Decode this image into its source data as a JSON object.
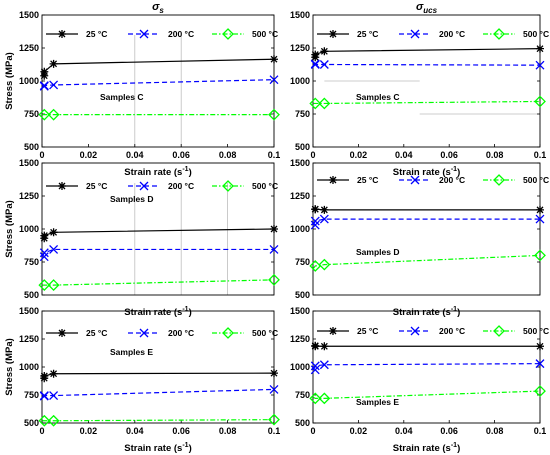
{
  "colors": {
    "25": "#000000",
    "200": "#0000ff",
    "500": "#00ff00"
  },
  "chart_data": [
    {
      "type": "line",
      "title": "σ",
      "title_sub": "s",
      "xlabel": "Strain rate (s",
      "xlabel_sup": "-1",
      "xlabel_end": ")",
      "ylabel": "Stress (MPa)",
      "xlim": [
        0,
        0.1
      ],
      "ylim": [
        500,
        1500
      ],
      "xticks": [
        "0",
        "0.02",
        "0.04",
        "0.06",
        "0.08",
        "0.1"
      ],
      "yticks": [
        "500",
        "750",
        "1000",
        "1250",
        "1500"
      ],
      "xtick_values": [
        0,
        0.02,
        0.04,
        0.06,
        0.08,
        0.1
      ],
      "ytick_values": [
        500,
        750,
        1000,
        1250,
        1500
      ],
      "annotation": "Samples C",
      "x": [
        0.0001,
        0.001,
        0.005,
        0.1
      ],
      "series": [
        {
          "name": "25 °C",
          "key": "25",
          "marker": "star",
          "values": [
            1040,
            1070,
            1130,
            1165
          ]
        },
        {
          "name": "200 °C",
          "key": "200",
          "marker": "x",
          "values": [
            960,
            965,
            970,
            1010
          ]
        },
        {
          "name": "500 °C",
          "key": "500",
          "marker": "diamond",
          "values": [
            745,
            745,
            745,
            745
          ]
        }
      ]
    },
    {
      "type": "line",
      "title": "σ",
      "title_sub": "ucs",
      "xlabel": "Strain rate (s",
      "xlabel_sup": "-1",
      "xlabel_end": ")",
      "ylabel": "",
      "xlim": [
        0,
        0.1
      ],
      "ylim": [
        500,
        1500
      ],
      "xticks": [
        "0",
        "0.02",
        "0.04",
        "0.06",
        "0.08",
        "0.1"
      ],
      "yticks": [
        "500",
        "750",
        "1000",
        "1250",
        "1500"
      ],
      "xtick_values": [
        0,
        0.02,
        0.04,
        0.06,
        0.08,
        0.1
      ],
      "ytick_values": [
        500,
        750,
        1000,
        1250,
        1500
      ],
      "annotation": "Samples C",
      "x": [
        0.0001,
        0.001,
        0.005,
        0.1
      ],
      "series": [
        {
          "name": "25 °C",
          "key": "25",
          "marker": "star",
          "values": [
            1180,
            1200,
            1225,
            1245
          ]
        },
        {
          "name": "200 °C",
          "key": "200",
          "marker": "x",
          "values": [
            1130,
            1125,
            1125,
            1120
          ]
        },
        {
          "name": "500 °C",
          "key": "500",
          "marker": "diamond",
          "values": [
            830,
            830,
            830,
            845
          ]
        }
      ]
    },
    {
      "type": "line",
      "title": "",
      "xlabel": "Strain rate (s",
      "xlabel_sup": "-1",
      "xlabel_end": ")",
      "ylabel": "Stress (MPa)",
      "xlim": [
        0,
        0.1
      ],
      "ylim": [
        500,
        1500
      ],
      "xticks": [],
      "yticks": [
        "500",
        "750",
        "1000",
        "1250",
        "1500"
      ],
      "xtick_values": [],
      "ytick_values": [
        500,
        750,
        1000,
        1250,
        1500
      ],
      "annotation": "Samples D",
      "x": [
        0.0001,
        0.001,
        0.005,
        0.1
      ],
      "series": [
        {
          "name": "25 °C",
          "key": "25",
          "marker": "star",
          "values": [
            930,
            950,
            975,
            1000
          ]
        },
        {
          "name": "200 °C",
          "key": "200",
          "marker": "x",
          "values": [
            790,
            820,
            845,
            845
          ]
        },
        {
          "name": "500 °C",
          "key": "500",
          "marker": "diamond",
          "values": [
            575,
            575,
            575,
            615
          ]
        }
      ]
    },
    {
      "type": "line",
      "title": "",
      "xlabel": "Strain rate (s",
      "xlabel_sup": "-1",
      "xlabel_end": ")",
      "ylabel": "",
      "xlim": [
        0,
        0.1
      ],
      "ylim": [
        500,
        1500
      ],
      "xticks": [],
      "yticks": [
        "500",
        "750",
        "1000",
        "1250",
        "1500"
      ],
      "xtick_values": [],
      "ytick_values": [
        500,
        750,
        1000,
        1250,
        1500
      ],
      "annotation": "Samples D",
      "x": [
        0.0001,
        0.001,
        0.005,
        0.1
      ],
      "series": [
        {
          "name": "25 °C",
          "key": "25",
          "marker": "star",
          "values": [
            1150,
            1150,
            1145,
            1145
          ]
        },
        {
          "name": "200 °C",
          "key": "200",
          "marker": "x",
          "values": [
            1030,
            1060,
            1075,
            1075
          ]
        },
        {
          "name": "500 °C",
          "key": "500",
          "marker": "diamond",
          "values": [
            700,
            720,
            730,
            800
          ]
        }
      ]
    },
    {
      "type": "line",
      "title": "",
      "xlabel": "Strain rate (s",
      "xlabel_sup": "-1",
      "xlabel_end": ")",
      "ylabel": "Stress (MPa)",
      "xlim": [
        0,
        0.1
      ],
      "ylim": [
        500,
        1500
      ],
      "xticks": [
        "0",
        "0.02",
        "0.04",
        "0.06",
        "0.08",
        "0.1"
      ],
      "yticks": [
        "500",
        "750",
        "1000",
        "1250",
        "1500"
      ],
      "xtick_values": [
        0,
        0.02,
        0.04,
        0.06,
        0.08,
        0.1
      ],
      "ytick_values": [
        500,
        750,
        1000,
        1250,
        1500
      ],
      "annotation": "Samples E",
      "x": [
        0.0001,
        0.001,
        0.005,
        0.1
      ],
      "series": [
        {
          "name": "25 °C",
          "key": "25",
          "marker": "star",
          "values": [
            900,
            920,
            940,
            945
          ]
        },
        {
          "name": "200 °C",
          "key": "200",
          "marker": "x",
          "values": [
            740,
            745,
            745,
            800
          ]
        },
        {
          "name": "500 °C",
          "key": "500",
          "marker": "diamond",
          "values": [
            520,
            520,
            520,
            530
          ]
        }
      ]
    },
    {
      "type": "line",
      "title": "",
      "xlabel": "Strain rate (s",
      "xlabel_sup": "-1",
      "xlabel_end": ")",
      "ylabel": "",
      "xlim": [
        0,
        0.1
      ],
      "ylim": [
        500,
        1500
      ],
      "xticks": [
        "0",
        "0.02",
        "0.04",
        "0.06",
        "0.08",
        "0.1"
      ],
      "yticks": [
        "500",
        "750",
        "1000",
        "1250",
        "1500"
      ],
      "xtick_values": [
        0,
        0.02,
        0.04,
        0.06,
        0.08,
        0.1
      ],
      "ytick_values": [
        500,
        750,
        1000,
        1250,
        1500
      ],
      "annotation": "Samples E",
      "x": [
        0.0001,
        0.001,
        0.005,
        0.1
      ],
      "series": [
        {
          "name": "25 °C",
          "key": "25",
          "marker": "star",
          "values": [
            1190,
            1185,
            1185,
            1185
          ]
        },
        {
          "name": "200 °C",
          "key": "200",
          "marker": "x",
          "values": [
            975,
            1010,
            1020,
            1030
          ]
        },
        {
          "name": "500 °C",
          "key": "500",
          "marker": "diamond",
          "values": [
            730,
            720,
            720,
            785
          ]
        }
      ]
    }
  ]
}
